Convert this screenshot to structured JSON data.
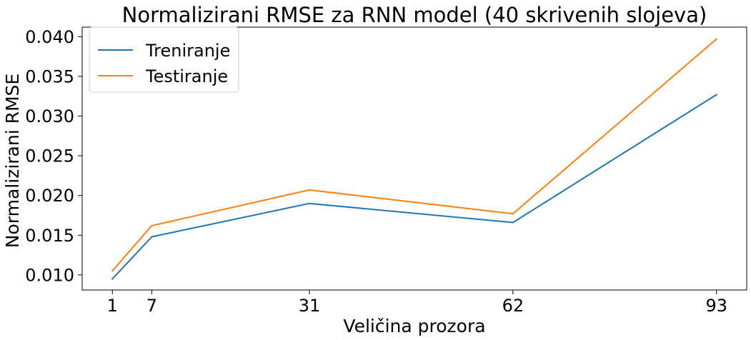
{
  "chart_data": {
    "type": "line",
    "title": "Normalizirani RMSE za RNN model (40 skrivenih slojeva)",
    "xlabel": "Veličina prozora",
    "ylabel": "Normalizirani RMSE",
    "x": [
      1,
      7,
      31,
      62,
      93
    ],
    "x_ticks": [
      "1",
      "7",
      "31",
      "62",
      "93"
    ],
    "y_ticks": [
      "0.010",
      "0.015",
      "0.020",
      "0.025",
      "0.030",
      "0.035",
      "0.040"
    ],
    "xlim": [
      -3.6,
      97.6
    ],
    "ylim": [
      0.0081,
      0.0412
    ],
    "grid": false,
    "legend_position": "top-left",
    "series": [
      {
        "name": "Treniranje",
        "color": "#1f77b4",
        "values": [
          0.0095,
          0.0148,
          0.019,
          0.0166,
          0.0327
        ]
      },
      {
        "name": "Testiranje",
        "color": "#ff7f0e",
        "values": [
          0.0105,
          0.0162,
          0.0207,
          0.0177,
          0.0397
        ]
      }
    ]
  }
}
